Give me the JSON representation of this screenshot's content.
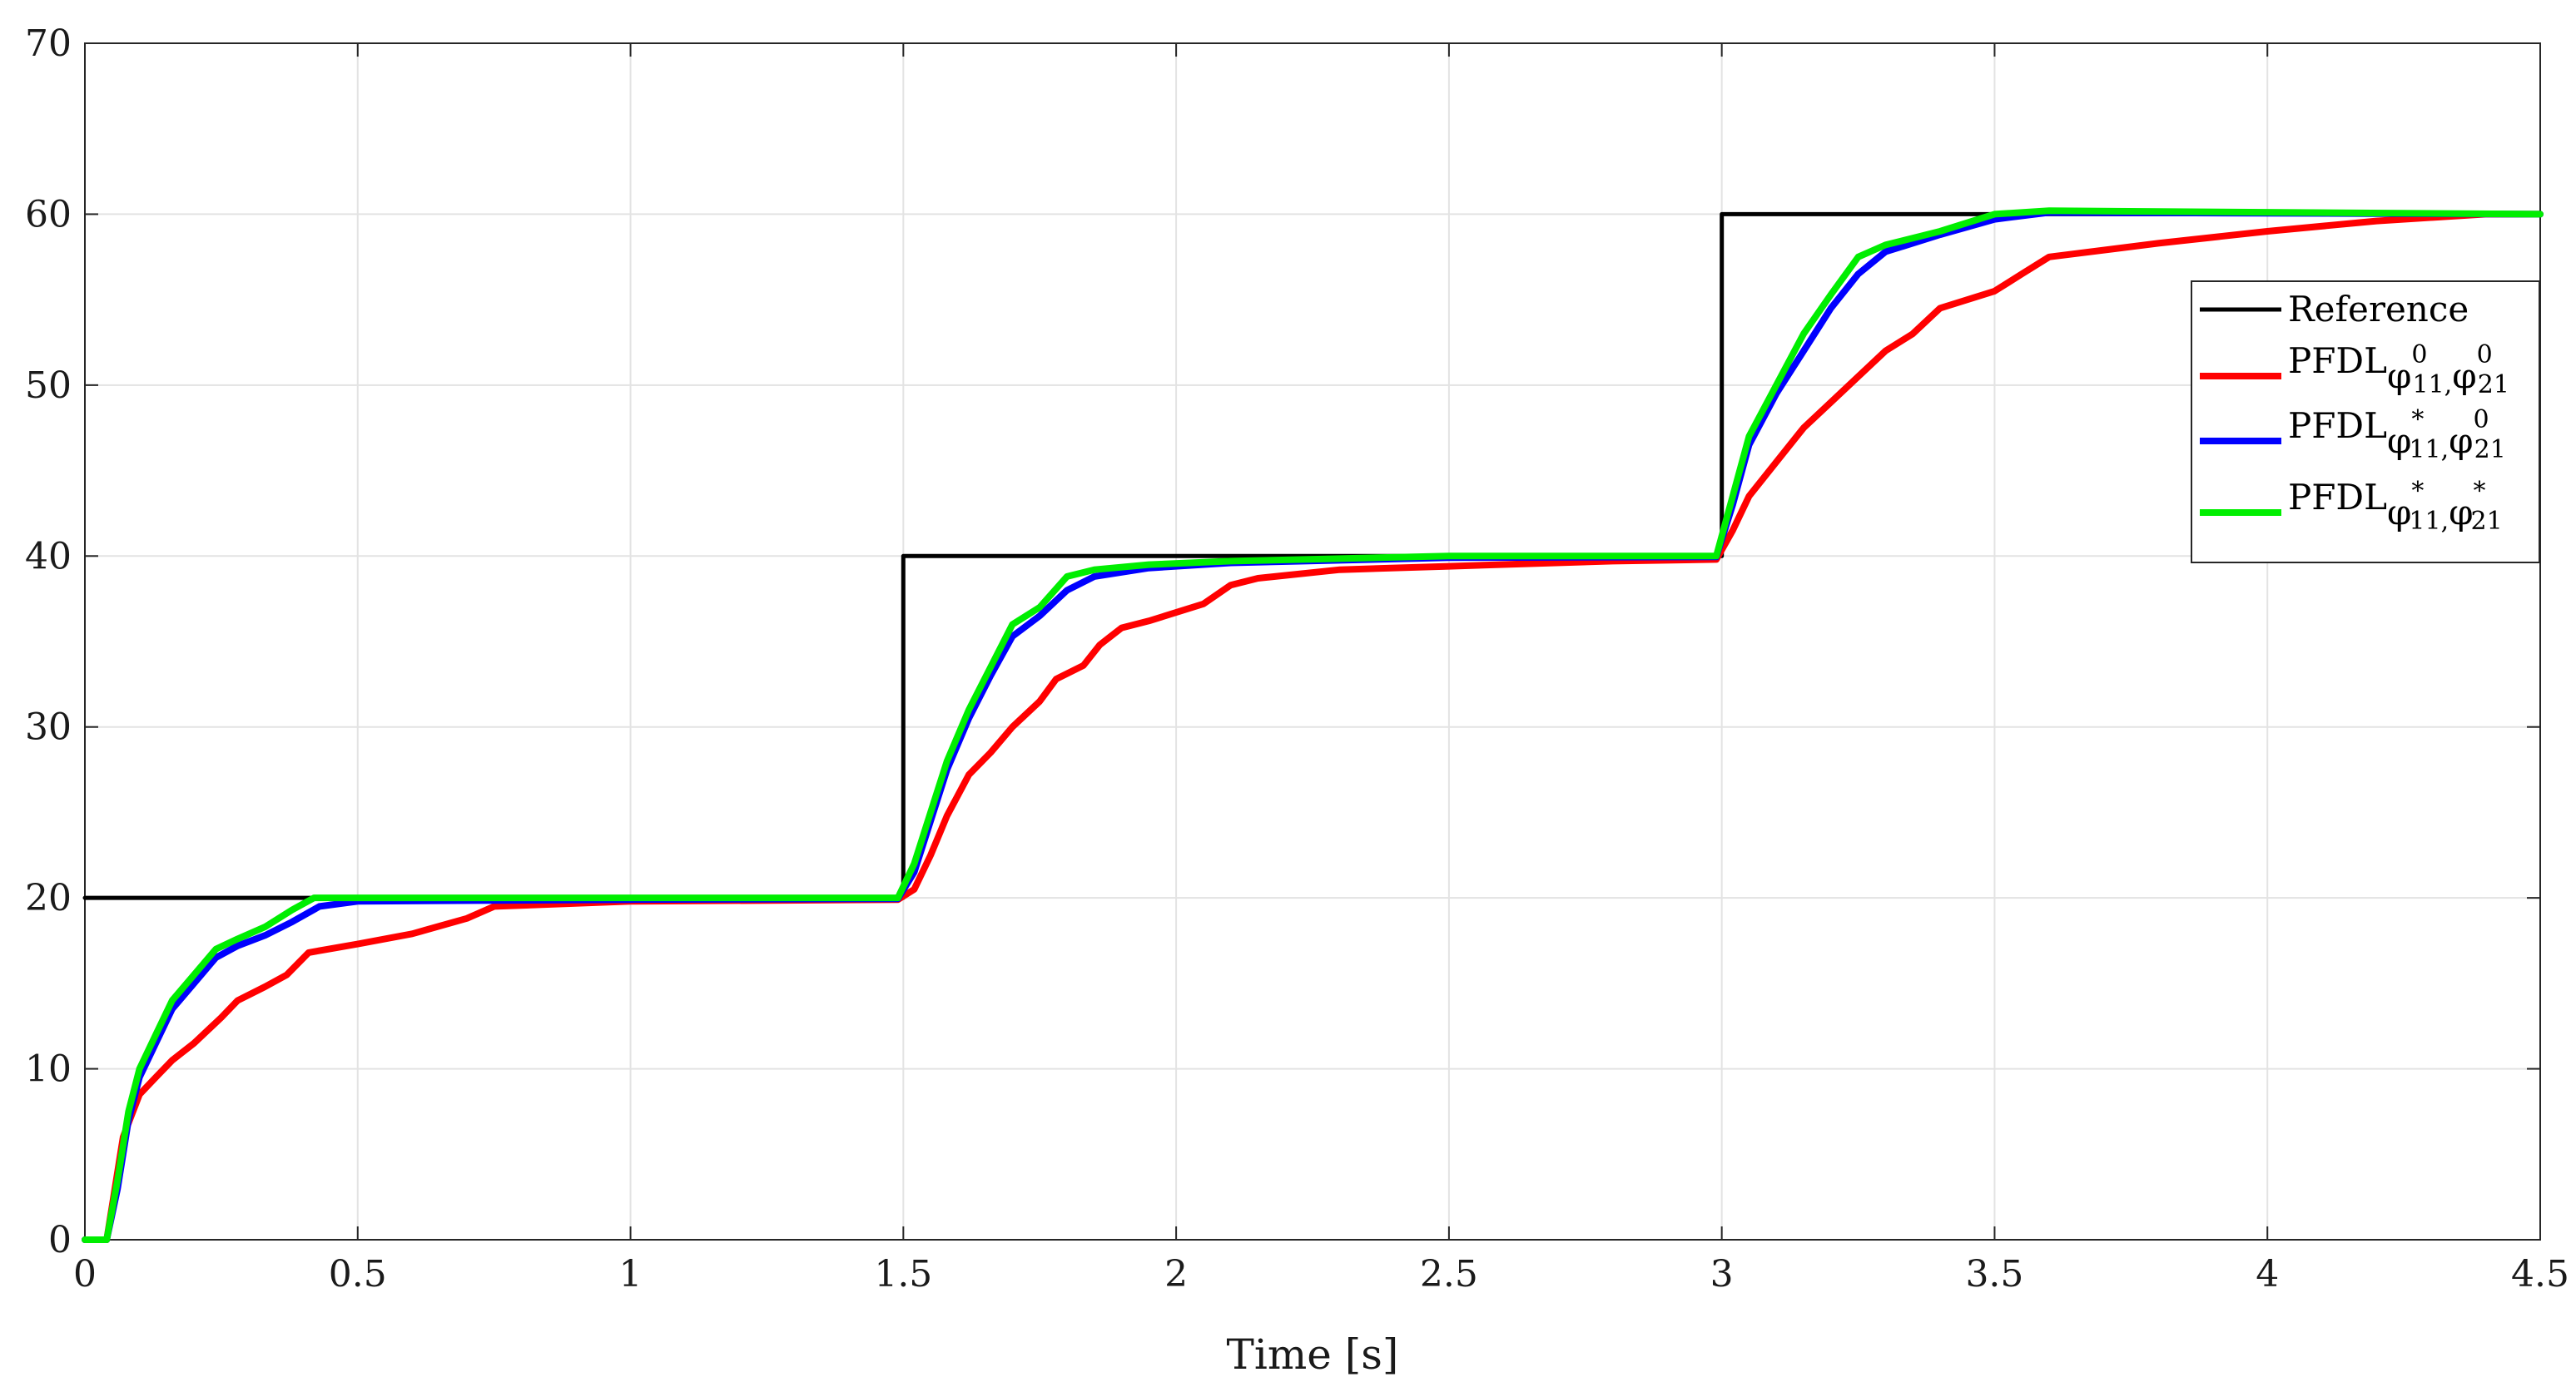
{
  "chart_data": {
    "type": "line",
    "title": "",
    "xlabel": "Time [s]",
    "ylabel": "",
    "xlim": [
      0,
      4.5
    ],
    "ylim": [
      0,
      70
    ],
    "xticks": [
      "0",
      "0.5",
      "1",
      "1.5",
      "2",
      "2.5",
      "3",
      "3.5",
      "4",
      "4.5"
    ],
    "yticks": [
      "0",
      "10",
      "20",
      "30",
      "40",
      "50",
      "60",
      "70"
    ],
    "grid": true,
    "legend_position": "right",
    "series": [
      {
        "name": "Reference",
        "color": "#000000",
        "points": [
          [
            0,
            20
          ],
          [
            1.5,
            20
          ],
          [
            1.5,
            40
          ],
          [
            3.0,
            40
          ],
          [
            3.0,
            60
          ],
          [
            4.5,
            60
          ]
        ]
      },
      {
        "name": "PFDL",
        "legend_symbols": [
          "φ",
          "11",
          "0",
          "φ",
          "21",
          "0"
        ],
        "color": "#ff0000",
        "points": [
          [
            0,
            0
          ],
          [
            0.04,
            0
          ],
          [
            0.05,
            2
          ],
          [
            0.07,
            6
          ],
          [
            0.1,
            8.5
          ],
          [
            0.13,
            9.5
          ],
          [
            0.16,
            10.5
          ],
          [
            0.2,
            11.5
          ],
          [
            0.25,
            13
          ],
          [
            0.28,
            14
          ],
          [
            0.33,
            14.8
          ],
          [
            0.37,
            15.5
          ],
          [
            0.41,
            16.8
          ],
          [
            0.5,
            17.3
          ],
          [
            0.6,
            17.9
          ],
          [
            0.7,
            18.8
          ],
          [
            0.75,
            19.5
          ],
          [
            1.0,
            19.8
          ],
          [
            1.49,
            19.9
          ],
          [
            1.52,
            20.5
          ],
          [
            1.55,
            22.5
          ],
          [
            1.58,
            24.8
          ],
          [
            1.62,
            27.2
          ],
          [
            1.66,
            28.5
          ],
          [
            1.7,
            30
          ],
          [
            1.75,
            31.5
          ],
          [
            1.78,
            32.8
          ],
          [
            1.83,
            33.6
          ],
          [
            1.86,
            34.8
          ],
          [
            1.9,
            35.8
          ],
          [
            1.95,
            36.2
          ],
          [
            2.05,
            37.2
          ],
          [
            2.1,
            38.3
          ],
          [
            2.15,
            38.7
          ],
          [
            2.3,
            39.2
          ],
          [
            2.5,
            39.4
          ],
          [
            2.8,
            39.7
          ],
          [
            2.99,
            39.8
          ],
          [
            3.02,
            41.5
          ],
          [
            3.05,
            43.5
          ],
          [
            3.1,
            45.5
          ],
          [
            3.15,
            47.5
          ],
          [
            3.2,
            49
          ],
          [
            3.25,
            50.5
          ],
          [
            3.3,
            52
          ],
          [
            3.35,
            53
          ],
          [
            3.4,
            54.5
          ],
          [
            3.5,
            55.5
          ],
          [
            3.55,
            56.5
          ],
          [
            3.6,
            57.5
          ],
          [
            3.8,
            58.3
          ],
          [
            4.0,
            59
          ],
          [
            4.2,
            59.6
          ],
          [
            4.4,
            60
          ],
          [
            4.5,
            60
          ]
        ]
      },
      {
        "name": "PFDL",
        "legend_symbols": [
          "φ",
          "11",
          "*",
          "φ",
          "21",
          "0"
        ],
        "color": "#0000ff",
        "points": [
          [
            0,
            0
          ],
          [
            0.04,
            0
          ],
          [
            0.06,
            3
          ],
          [
            0.08,
            7
          ],
          [
            0.1,
            9.5
          ],
          [
            0.13,
            11.5
          ],
          [
            0.16,
            13.5
          ],
          [
            0.2,
            15
          ],
          [
            0.24,
            16.5
          ],
          [
            0.28,
            17.2
          ],
          [
            0.33,
            17.8
          ],
          [
            0.38,
            18.6
          ],
          [
            0.43,
            19.5
          ],
          [
            0.5,
            19.8
          ],
          [
            1.0,
            19.9
          ],
          [
            1.49,
            19.95
          ],
          [
            1.52,
            21.5
          ],
          [
            1.55,
            24.5
          ],
          [
            1.58,
            27.5
          ],
          [
            1.62,
            30.5
          ],
          [
            1.66,
            33
          ],
          [
            1.7,
            35.3
          ],
          [
            1.75,
            36.5
          ],
          [
            1.8,
            38
          ],
          [
            1.85,
            38.8
          ],
          [
            1.95,
            39.3
          ],
          [
            2.1,
            39.6
          ],
          [
            2.5,
            39.9
          ],
          [
            2.99,
            39.95
          ],
          [
            3.02,
            43
          ],
          [
            3.05,
            46.5
          ],
          [
            3.1,
            49.5
          ],
          [
            3.15,
            52
          ],
          [
            3.2,
            54.5
          ],
          [
            3.25,
            56.5
          ],
          [
            3.3,
            57.8
          ],
          [
            3.4,
            58.8
          ],
          [
            3.5,
            59.7
          ],
          [
            3.6,
            60.1
          ],
          [
            4.5,
            60
          ]
        ]
      },
      {
        "name": "PFDL",
        "legend_symbols": [
          "φ",
          "11",
          "*",
          "φ",
          "21",
          "*"
        ],
        "color": "#00ee00",
        "points": [
          [
            0,
            0
          ],
          [
            0.04,
            0
          ],
          [
            0.06,
            3.5
          ],
          [
            0.08,
            7.5
          ],
          [
            0.1,
            10
          ],
          [
            0.13,
            12
          ],
          [
            0.16,
            14
          ],
          [
            0.2,
            15.5
          ],
          [
            0.24,
            17
          ],
          [
            0.28,
            17.6
          ],
          [
            0.33,
            18.3
          ],
          [
            0.38,
            19.3
          ],
          [
            0.42,
            20
          ],
          [
            0.5,
            20
          ],
          [
            1.0,
            20
          ],
          [
            1.49,
            20
          ],
          [
            1.52,
            22
          ],
          [
            1.55,
            25
          ],
          [
            1.58,
            28
          ],
          [
            1.62,
            31
          ],
          [
            1.66,
            33.5
          ],
          [
            1.7,
            36
          ],
          [
            1.75,
            37
          ],
          [
            1.8,
            38.8
          ],
          [
            1.85,
            39.2
          ],
          [
            1.95,
            39.5
          ],
          [
            2.1,
            39.7
          ],
          [
            2.5,
            40
          ],
          [
            2.99,
            40
          ],
          [
            3.02,
            43.5
          ],
          [
            3.05,
            47
          ],
          [
            3.1,
            50
          ],
          [
            3.15,
            53
          ],
          [
            3.2,
            55.3
          ],
          [
            3.25,
            57.5
          ],
          [
            3.3,
            58.2
          ],
          [
            3.4,
            59
          ],
          [
            3.5,
            60
          ],
          [
            3.6,
            60.2
          ],
          [
            4.5,
            60
          ]
        ]
      }
    ]
  }
}
